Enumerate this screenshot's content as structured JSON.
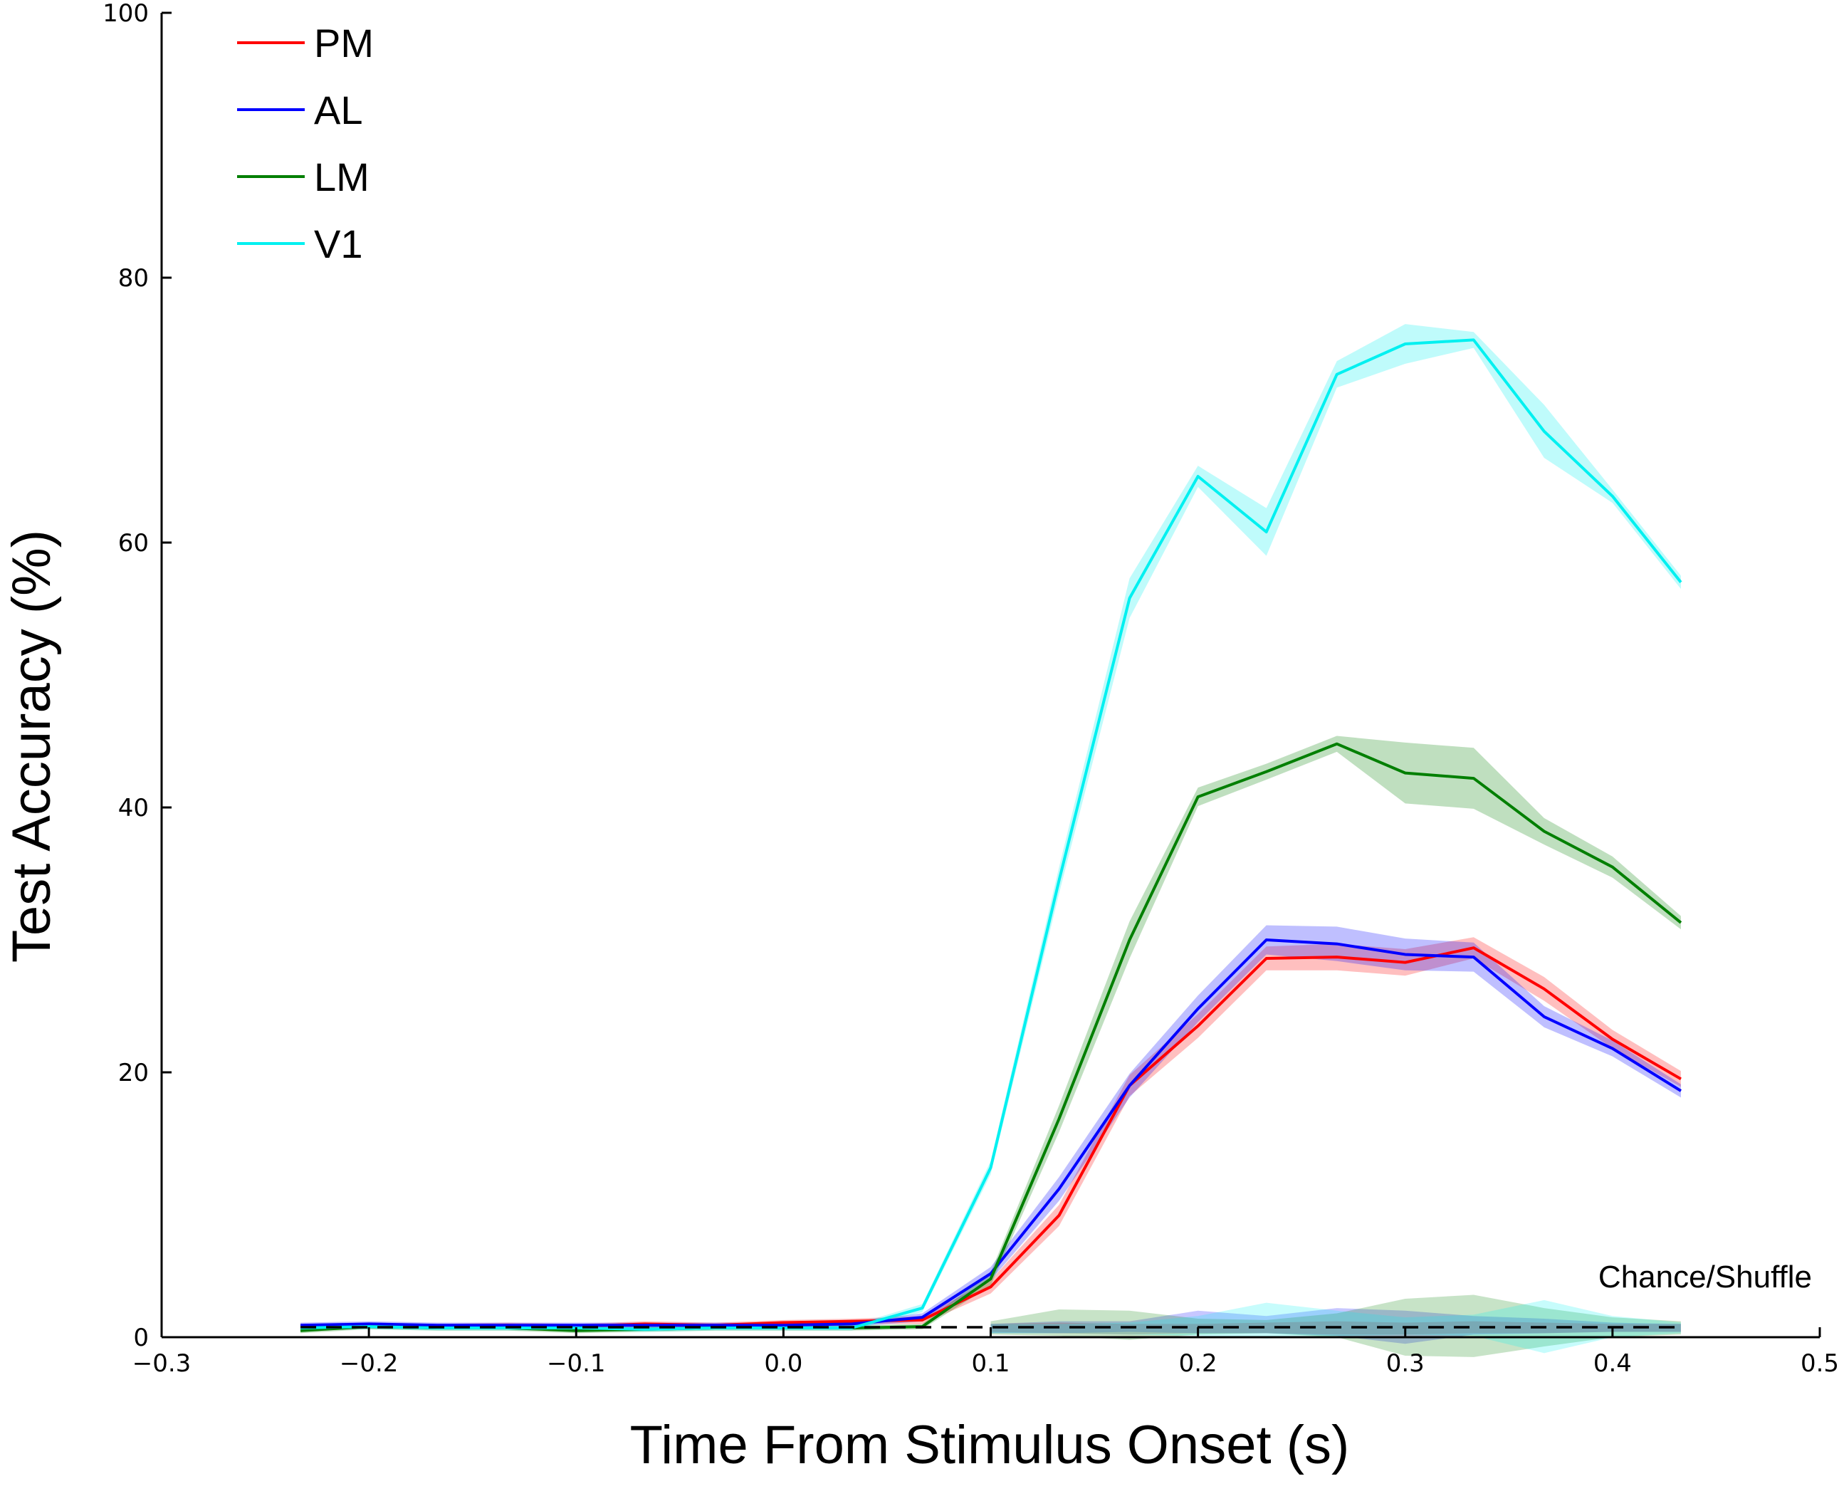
{
  "chart_data": {
    "type": "line",
    "title": "",
    "xlabel": "Time From Stimulus Onset (s)",
    "ylabel": "Test Accuracy (%)",
    "xlim": [
      -0.3,
      0.5
    ],
    "ylim": [
      0,
      100
    ],
    "xticks": [
      -0.3,
      -0.2,
      -0.1,
      0.0,
      0.1,
      0.2,
      0.3,
      0.4,
      0.5
    ],
    "xtick_labels": [
      "−0.3",
      "−0.2",
      "−0.1",
      "0.0",
      "0.1",
      "0.2",
      "0.3",
      "0.4",
      "0.5"
    ],
    "yticks": [
      0,
      20,
      40,
      60,
      80,
      100
    ],
    "ytick_labels": [
      "0",
      "20",
      "40",
      "60",
      "80",
      "100"
    ],
    "grid": false,
    "legend_position": "top-left",
    "annotation": "Chance/Shuffle",
    "x": [
      -0.233,
      -0.2,
      -0.167,
      -0.133,
      -0.1,
      -0.067,
      -0.033,
      0.0,
      0.033,
      0.067,
      0.1,
      0.133,
      0.167,
      0.2,
      0.233,
      0.267,
      0.3,
      0.333,
      0.367,
      0.4,
      0.433
    ],
    "series": [
      {
        "name": "PM",
        "color": "#ff0000",
        "values": [
          0.8,
          0.9,
          0.8,
          0.9,
          0.8,
          1.0,
          0.9,
          1.1,
          1.2,
          1.3,
          3.8,
          9.2,
          19.0,
          23.5,
          28.6,
          28.7,
          28.3,
          29.4,
          26.3,
          22.5,
          19.5
        ],
        "err": [
          0.2,
          0.2,
          0.2,
          0.2,
          0.2,
          0.2,
          0.2,
          0.2,
          0.2,
          0.3,
          0.5,
          0.8,
          0.8,
          0.9,
          0.9,
          1.0,
          1.0,
          0.8,
          0.9,
          0.7,
          0.6
        ]
      },
      {
        "name": "AL",
        "color": "#0000ff",
        "values": [
          0.9,
          1.0,
          0.9,
          0.9,
          0.9,
          0.9,
          0.9,
          0.9,
          1.0,
          1.5,
          4.8,
          11.2,
          19.0,
          24.8,
          30.0,
          29.7,
          28.9,
          28.7,
          24.2,
          21.8,
          18.6
        ],
        "err": [
          0.2,
          0.2,
          0.2,
          0.2,
          0.2,
          0.2,
          0.2,
          0.2,
          0.2,
          0.3,
          0.5,
          0.9,
          0.9,
          1.0,
          1.1,
          1.3,
          1.2,
          1.1,
          0.8,
          0.6,
          0.5
        ]
      },
      {
        "name": "LM",
        "color": "#007f00",
        "values": [
          0.5,
          0.8,
          0.7,
          0.7,
          0.5,
          0.6,
          0.7,
          0.7,
          0.7,
          0.8,
          4.4,
          16.5,
          30.0,
          40.8,
          42.7,
          44.8,
          42.6,
          42.2,
          38.2,
          35.5,
          31.3
        ],
        "err": [
          0.2,
          0.2,
          0.2,
          0.2,
          0.2,
          0.2,
          0.2,
          0.2,
          0.2,
          0.2,
          0.5,
          1.0,
          1.4,
          0.7,
          0.6,
          0.6,
          2.3,
          2.3,
          1.0,
          0.8,
          0.5
        ]
      },
      {
        "name": "V1",
        "color": "#00f0f0",
        "values": [
          0.7,
          0.8,
          0.7,
          0.7,
          0.7,
          0.6,
          0.7,
          0.7,
          0.7,
          2.2,
          12.8,
          34.5,
          55.8,
          65.0,
          60.8,
          72.7,
          75.0,
          75.3,
          68.4,
          63.5,
          57.0
        ],
        "err": [
          0.2,
          0.2,
          0.2,
          0.2,
          0.2,
          0.2,
          0.2,
          0.2,
          0.2,
          0.3,
          0.5,
          1.0,
          1.5,
          0.8,
          1.8,
          1.0,
          1.5,
          0.6,
          2.0,
          0.5,
          0.5
        ]
      }
    ],
    "shuffle": {
      "name": "Chance/Shuffle",
      "color": "#000000",
      "x": [
        -0.233,
        0.433
      ],
      "values": [
        0.75,
        0.75
      ],
      "bands": [
        {
          "name": "PM",
          "color": "#ff0000",
          "x": [
            0.1,
            0.133,
            0.167,
            0.2,
            0.233,
            0.267,
            0.3,
            0.333,
            0.367,
            0.4,
            0.433
          ],
          "lower": [
            0.4,
            0.3,
            0.2,
            0.3,
            0.3,
            0.2,
            0.2,
            0.3,
            0.3,
            0.4,
            0.4
          ],
          "upper": [
            1.0,
            1.1,
            1.0,
            1.0,
            1.1,
            1.2,
            1.1,
            1.2,
            1.1,
            1.0,
            1.0
          ]
        },
        {
          "name": "AL",
          "color": "#0000ff",
          "x": [
            0.1,
            0.133,
            0.167,
            0.2,
            0.233,
            0.267,
            0.3,
            0.333,
            0.367,
            0.4,
            0.433
          ],
          "lower": [
            0.3,
            0.3,
            0.4,
            0.3,
            0.3,
            0.1,
            -0.5,
            0.2,
            0.3,
            0.4,
            0.4
          ],
          "upper": [
            1.0,
            1.2,
            1.2,
            2.0,
            1.6,
            2.2,
            2.0,
            1.6,
            1.4,
            1.1,
            1.0
          ]
        },
        {
          "name": "LM",
          "color": "#007f00",
          "x": [
            0.1,
            0.133,
            0.167,
            0.2,
            0.233,
            0.267,
            0.3,
            0.333,
            0.367,
            0.4,
            0.433
          ],
          "lower": [
            0.2,
            0.1,
            -0.2,
            0.2,
            0.3,
            0.0,
            -1.4,
            -1.5,
            -0.7,
            0.0,
            0.2
          ],
          "upper": [
            1.2,
            2.1,
            2.0,
            1.4,
            1.3,
            1.8,
            2.9,
            3.2,
            2.2,
            1.5,
            1.2
          ]
        },
        {
          "name": "V1",
          "color": "#00f0f0",
          "x": [
            0.1,
            0.133,
            0.167,
            0.2,
            0.233,
            0.267,
            0.3,
            0.333,
            0.367,
            0.4,
            0.433
          ],
          "lower": [
            0.3,
            0.3,
            0.2,
            0.1,
            -0.1,
            0.1,
            0.2,
            0.1,
            -1.2,
            0.0,
            0.3
          ],
          "upper": [
            1.0,
            1.0,
            1.1,
            1.6,
            2.6,
            2.0,
            1.5,
            1.7,
            2.8,
            1.6,
            1.1
          ]
        }
      ]
    }
  }
}
